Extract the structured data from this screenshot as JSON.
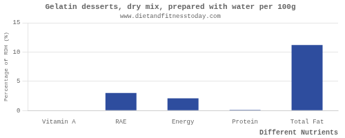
{
  "chart_data": {
    "type": "bar",
    "title": "Gelatin desserts, dry mix, prepared with water per 100g",
    "subtitle": "www.dietandfitnesstoday.com",
    "xlabel": "Different Nutrients",
    "ylabel": "Percentage of RDH (%)",
    "categories": [
      "Vitamin A",
      "RAE",
      "Energy",
      "Protein",
      "Total Fat"
    ],
    "values": [
      0.0,
      3.0,
      2.1,
      0.1,
      11.2
    ],
    "color": "#2e4d9e",
    "ylim": [
      0,
      15
    ],
    "yticks": [
      0,
      5,
      10,
      15
    ],
    "grid": true
  }
}
